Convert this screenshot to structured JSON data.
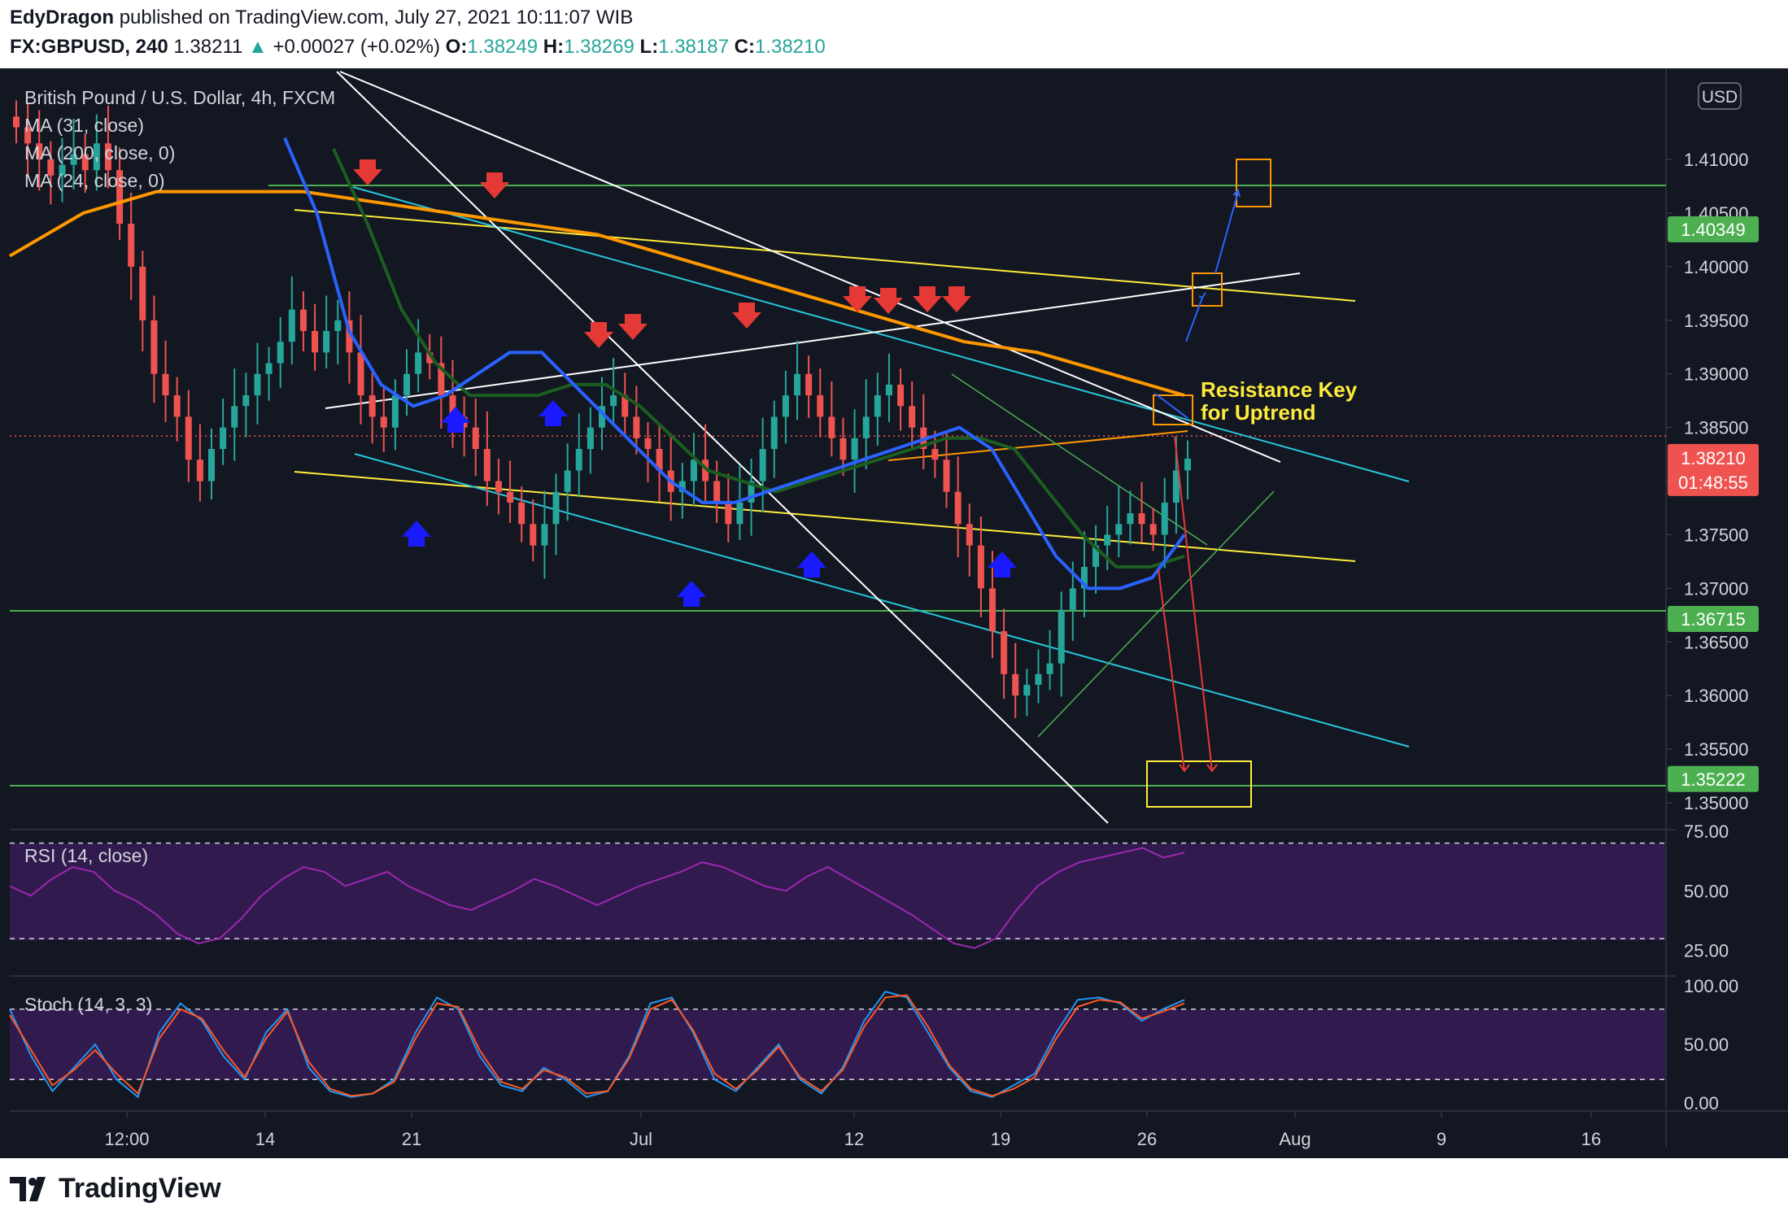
{
  "header": {
    "author": "EdyDragon",
    "published_text": "published on TradingView.com, July 27, 2021 10:11:07 WIB",
    "symbol": "FX:GBPUSD, 240",
    "last": "1.38211",
    "change_arrow": "▲",
    "change": "+0.00027 (+0.02%)",
    "open_label": "O:",
    "open": "1.38249",
    "high_label": "H:",
    "high": "1.38269",
    "low_label": "L:",
    "low": "1.38187",
    "close_label": "C:",
    "close": "1.38210"
  },
  "legend": {
    "title": "British Pound / U.S. Dollar, 4h, FXCM",
    "ma1": "MA (31, close)",
    "ma2": "MA (200, close, 0)",
    "ma3": "MA (24, close, 0)",
    "rsi": "RSI (14, close)",
    "stoch": "Stoch (14, 3, 3)",
    "currency": "USD"
  },
  "annotation": {
    "line1": "Resistance Key",
    "line2": "for Uptrend"
  },
  "price_labels": [
    {
      "value": 1.40349,
      "text": "1.40349",
      "color": "#4caf50"
    },
    {
      "value": 1.36715,
      "text": "1.36715",
      "color": "#4caf50"
    },
    {
      "value": 1.35222,
      "text": "1.35222",
      "color": "#4caf50"
    }
  ],
  "current_price": {
    "value": 1.3821,
    "text": "1.38210",
    "timer": "01:48:55",
    "color": "#ef5350"
  },
  "footer": {
    "brand": "TradingView"
  },
  "colors": {
    "up": "#26a69a",
    "down": "#ef5350",
    "ma31": "#2962ff",
    "ma200": "#ff9800",
    "ma24": "#1b5e20",
    "level": "#4caf50",
    "arrow_up": "#1a1aff",
    "arrow_down": "#e53935",
    "panel": "#311b4e"
  },
  "chart_data": [
    {
      "type": "candlestick",
      "title": "British Pound / U.S. Dollar, 4h, FXCM",
      "ylim": [
        1.3475,
        1.4185
      ],
      "y_ticks": [
        "1.35000",
        "1.35500",
        "1.36000",
        "1.36500",
        "1.37000",
        "1.37500",
        "1.38000",
        "1.38500",
        "1.39000",
        "1.39500",
        "1.40000",
        "1.40500",
        "1.41000"
      ],
      "x_ticks": [
        "12:00",
        "14",
        "21",
        "Jul",
        "12",
        "19",
        "26",
        "Aug",
        "9",
        "16"
      ],
      "series": [
        {
          "name": "MA (31, close)",
          "color": "#2962ff",
          "values": [
            1.412,
            1.405,
            1.394,
            1.389,
            1.387,
            1.388,
            1.39,
            1.392,
            1.392,
            1.389,
            1.386,
            1.383,
            1.38,
            1.378,
            1.378,
            1.379,
            1.38,
            1.381,
            1.382,
            1.383,
            1.384,
            1.385,
            1.383,
            1.378,
            1.373,
            1.37,
            1.37,
            1.371,
            1.375
          ]
        },
        {
          "name": "MA (200, close, 0)",
          "color": "#ff9800",
          "values": [
            1.401,
            1.405,
            1.407,
            1.407,
            1.407,
            1.406,
            1.405,
            1.404,
            1.403,
            1.401,
            1.399,
            1.397,
            1.395,
            1.393,
            1.392,
            1.39,
            1.388
          ]
        },
        {
          "name": "MA (24, close, 0)",
          "color": "#1b5e20",
          "values": [
            1.411,
            1.404,
            1.396,
            1.391,
            1.388,
            1.388,
            1.388,
            1.389,
            1.389,
            1.387,
            1.384,
            1.381,
            1.38,
            1.379,
            1.38,
            1.381,
            1.382,
            1.383,
            1.384,
            1.384,
            1.383,
            1.379,
            1.375,
            1.372,
            1.372,
            1.373
          ]
        }
      ],
      "closes": [
        1.413,
        1.4115,
        1.41,
        1.4085,
        1.4095,
        1.4105,
        1.409,
        1.4115,
        1.409,
        1.404,
        1.4,
        1.395,
        1.39,
        1.388,
        1.386,
        1.382,
        1.38,
        1.383,
        1.385,
        1.387,
        1.388,
        1.39,
        1.391,
        1.393,
        1.396,
        1.394,
        1.392,
        1.394,
        1.395,
        1.392,
        1.388,
        1.386,
        1.385,
        1.388,
        1.39,
        1.392,
        1.391,
        1.388,
        1.386,
        1.385,
        1.383,
        1.38,
        1.379,
        1.378,
        1.376,
        1.374,
        1.376,
        1.379,
        1.381,
        1.383,
        1.385,
        1.387,
        1.388,
        1.386,
        1.384,
        1.383,
        1.381,
        1.379,
        1.38,
        1.382,
        1.38,
        1.378,
        1.376,
        1.378,
        1.38,
        1.383,
        1.386,
        1.388,
        1.39,
        1.388,
        1.386,
        1.384,
        1.382,
        1.384,
        1.386,
        1.388,
        1.389,
        1.387,
        1.385,
        1.383,
        1.382,
        1.379,
        1.376,
        1.374,
        1.37,
        1.366,
        1.362,
        1.36,
        1.361,
        1.362,
        1.363,
        1.368,
        1.37,
        1.372,
        1.374,
        1.375,
        1.376,
        1.377,
        1.376,
        1.375,
        1.378,
        1.381,
        1.3821
      ],
      "rsi_levels": [
        70,
        30
      ],
      "stoch_levels": [
        80,
        20
      ]
    },
    {
      "type": "line",
      "title": "RSI (14, close)",
      "ylim": [
        15,
        75
      ],
      "y_ticks": [
        "75.00",
        "50.00",
        "25.00"
      ],
      "series": [
        {
          "name": "RSI (14, close)",
          "color": "#9c27b0",
          "values": [
            52,
            48,
            55,
            60,
            58,
            50,
            46,
            40,
            32,
            28,
            30,
            38,
            48,
            55,
            60,
            58,
            52,
            55,
            58,
            52,
            48,
            44,
            42,
            46,
            50,
            55,
            52,
            48,
            44,
            48,
            52,
            55,
            58,
            62,
            60,
            56,
            52,
            50,
            56,
            60,
            55,
            50,
            45,
            40,
            34,
            28,
            26,
            30,
            42,
            52,
            58,
            62,
            64,
            66,
            68,
            64,
            66
          ]
        }
      ]
    },
    {
      "type": "line",
      "title": "Stoch (14, 3, 3)",
      "ylim": [
        0,
        100
      ],
      "y_ticks": [
        "100.00",
        "50.00",
        "0.00"
      ],
      "series": [
        {
          "name": "%K",
          "color": "#2196f3",
          "values": [
            80,
            40,
            10,
            30,
            50,
            20,
            5,
            60,
            85,
            70,
            40,
            20,
            60,
            80,
            30,
            10,
            5,
            8,
            20,
            60,
            90,
            80,
            40,
            15,
            10,
            30,
            20,
            5,
            10,
            40,
            85,
            90,
            60,
            20,
            10,
            30,
            50,
            20,
            8,
            30,
            70,
            95,
            90,
            60,
            30,
            10,
            5,
            15,
            25,
            60,
            88,
            90,
            85,
            70,
            80,
            88
          ]
        },
        {
          "name": "%D",
          "color": "#ff5722",
          "values": [
            75,
            45,
            15,
            28,
            45,
            25,
            8,
            55,
            80,
            72,
            45,
            22,
            55,
            78,
            35,
            12,
            6,
            8,
            18,
            55,
            85,
            82,
            45,
            18,
            12,
            28,
            22,
            8,
            10,
            38,
            80,
            88,
            62,
            25,
            12,
            28,
            48,
            22,
            10,
            28,
            65,
            90,
            92,
            65,
            32,
            12,
            6,
            12,
            22,
            55,
            82,
            88,
            86,
            72,
            78,
            85
          ]
        }
      ]
    }
  ]
}
